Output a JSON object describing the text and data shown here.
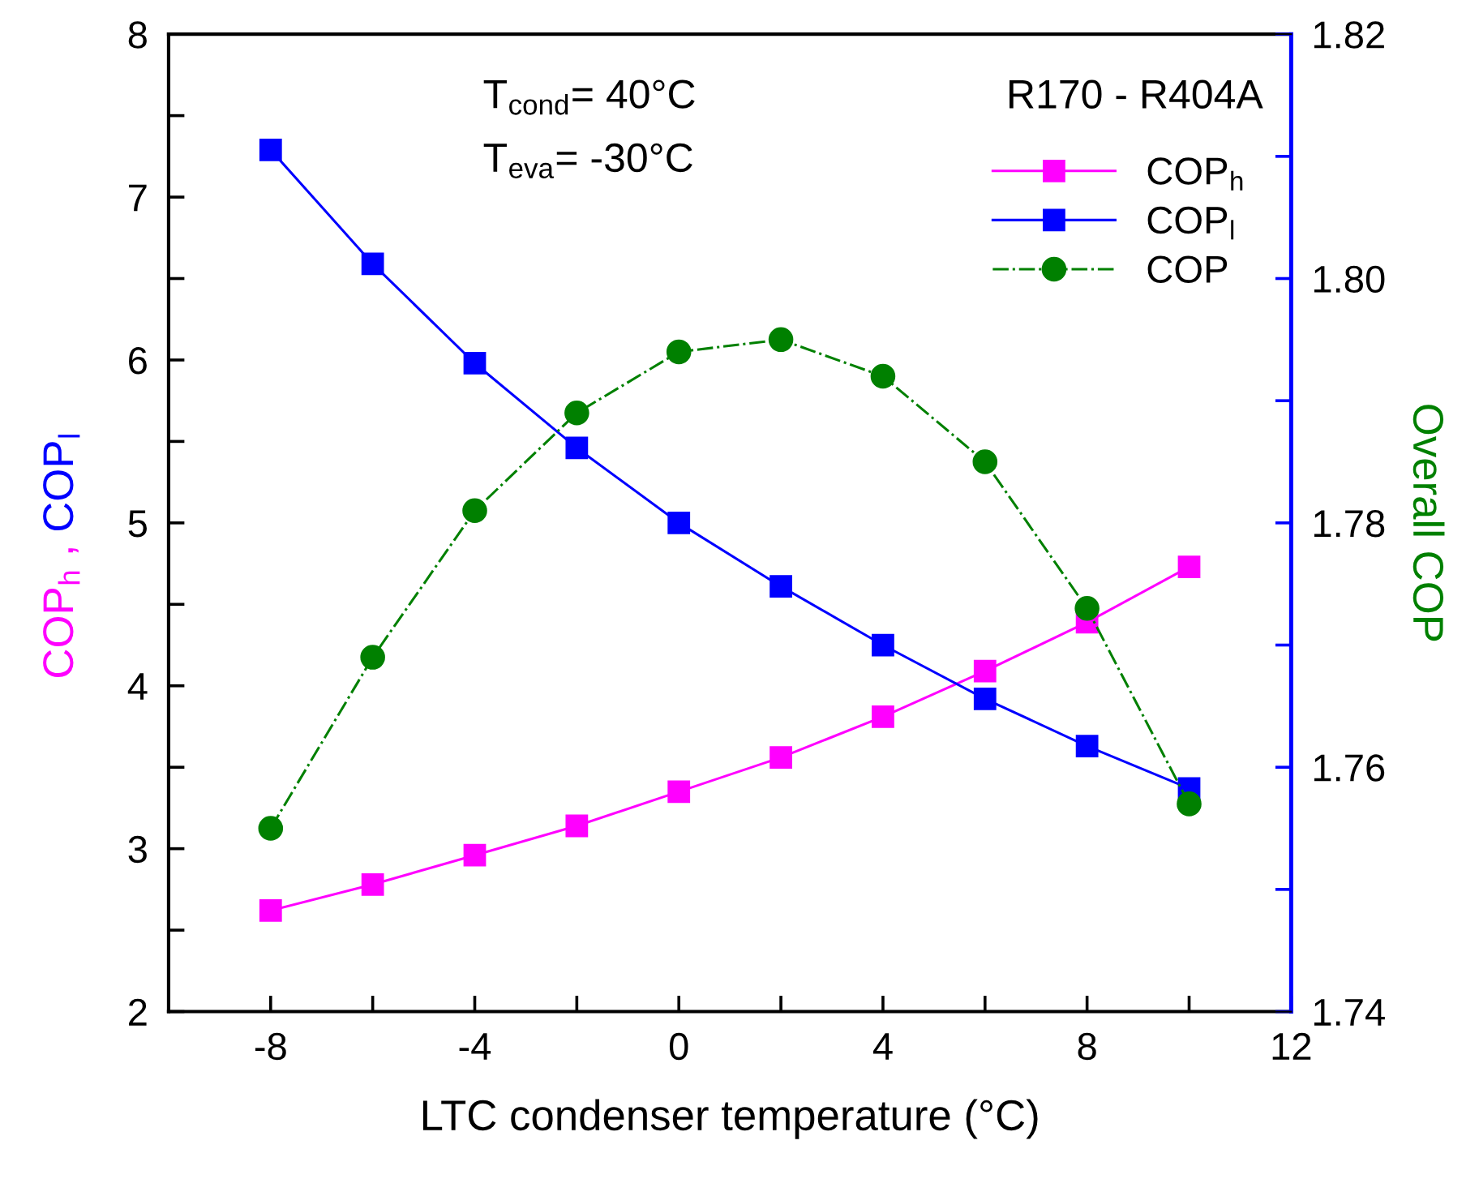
{
  "chart_data": {
    "type": "line",
    "xlabel": "LTC condenser temperature (°C)",
    "ylabel": "COP$_{h}$ , COP$_{l}$",
    "y2label": "Overall COP",
    "x": [
      -8,
      -6,
      -4,
      -2,
      0,
      2,
      4,
      6,
      8,
      10
    ],
    "series": [
      {
        "name": "COP$_{h}$",
        "color": "#ff00ff",
        "marker": "square",
        "line_style": "solid",
        "values": [
          2.62,
          2.78,
          2.96,
          3.14,
          3.35,
          3.56,
          3.81,
          4.09,
          4.39,
          4.73
        ]
      },
      {
        "name": "COP$_{l}$",
        "color": "#0000ff",
        "marker": "square",
        "line_style": "solid",
        "values": [
          7.29,
          6.59,
          5.98,
          5.46,
          5.0,
          4.61,
          4.25,
          3.92,
          3.63,
          3.37
        ]
      },
      {
        "name": "COP",
        "color": "#008000",
        "marker": "circle",
        "line_style": "dashdot",
        "axis": "y2",
        "values": [
          1.755,
          1.769,
          1.781,
          1.789,
          1.794,
          1.795,
          1.792,
          1.785,
          1.773,
          1.757
        ]
      }
    ],
    "xlim": [
      -10,
      12
    ],
    "xticks": [
      {
        "value": -10,
        "label": null
      },
      -8,
      {
        "value": -6,
        "label": null
      },
      -4,
      {
        "value": -2,
        "label": null
      },
      0,
      {
        "value": 2,
        "label": null
      },
      4,
      {
        "value": 6,
        "label": null
      },
      8,
      {
        "value": 10,
        "label": null
      },
      12
    ],
    "ylim": [
      2,
      8
    ],
    "yticks": [
      2,
      {
        "value": 2.5,
        "label": null
      },
      3,
      {
        "value": 3.5,
        "label": null
      },
      4,
      {
        "value": 4.5,
        "label": null
      },
      5,
      {
        "value": 5.5,
        "label": null
      },
      6,
      {
        "value": 6.5,
        "label": null
      },
      7,
      {
        "value": 7.5,
        "label": null
      },
      8
    ],
    "y2lim": [
      1.74,
      1.82
    ],
    "y2ticks": [
      1.74,
      {
        "value": 1.75,
        "label": null
      },
      1.76,
      {
        "value": 1.77,
        "label": null
      },
      1.78,
      {
        "value": 1.79,
        "label": null
      },
      {
        "value": 1.8,
        "label": "1.80"
      },
      {
        "value": 1.81,
        "label": null
      },
      1.82
    ],
    "annotations": [
      "T$_{cond}$= 40°C",
      "T$_{eva}$= -30°C",
      "R170 - R404A"
    ],
    "legend": "top right",
    "grid": false
  }
}
